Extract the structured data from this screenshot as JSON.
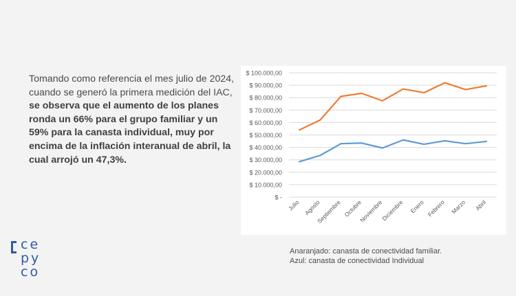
{
  "paragraph": {
    "normal": "Tomando como referencia el mes julio de 2024, cuando se generó la primera medición del IAC, ",
    "bold": "se observa que el aumento de los planes ronda un 66% para el grupo familiar y un 59% para la canasta individual, muy por encima de la inflación interanual de abril, la cual arrojó un 47,3%."
  },
  "caption": {
    "line1": "Anaranjado: canasta de conectividad familiar.",
    "line2": "Azul: canasta de conectividad Individual"
  },
  "logo": {
    "line1": "ce",
    "line2": "py",
    "line3": "co"
  },
  "chart_data": {
    "type": "line",
    "categories": [
      "Julio",
      "Agosto",
      "Septiembre",
      "Octubre",
      "Noviembre",
      "Diciembre",
      "Enero",
      "Febrero",
      "Marzo",
      "Abril"
    ],
    "y_ticks": [
      "$ -",
      "$ 10.000,00",
      "$ 20.000,00",
      "$ 30.000,00",
      "$ 40.000,00",
      "$ 50.000,00",
      "$ 60.000,00",
      "$ 70.000,00",
      "$ 80.000,00",
      "$ 90.000,00",
      "$ 100.000,00"
    ],
    "ylim": [
      0,
      100000
    ],
    "grid": true,
    "series": [
      {
        "color": "#ed7d31",
        "values": [
          54000,
          62000,
          81000,
          83500,
          77500,
          87000,
          84000,
          92000,
          86500,
          89500
        ]
      },
      {
        "color": "#5b9bd5",
        "values": [
          28500,
          33500,
          43000,
          43500,
          39500,
          46000,
          42500,
          45300,
          43000,
          44800
        ]
      }
    ]
  }
}
